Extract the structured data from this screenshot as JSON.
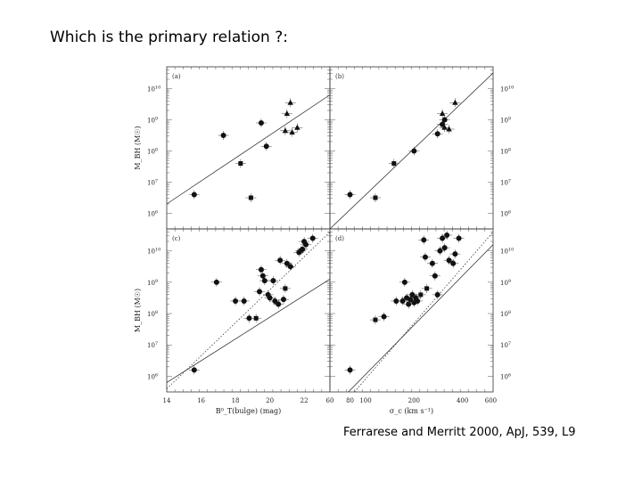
{
  "slide": {
    "title": "Which is the primary relation ?:",
    "citation": "Ferrarese and Merritt 2000, ApJ, 539, L9"
  },
  "chart_data": [
    {
      "panel": "(a)",
      "type": "scatter",
      "xlabel": "",
      "ylabel": "M_BH (M☉)",
      "xscale": "linear",
      "xlim": [
        14,
        23.5
      ],
      "yscale": "log",
      "ylim_exp": [
        5.5,
        10.7
      ],
      "yticks": [
        "10^6",
        "10^7",
        "10^8",
        "10^9",
        "10^10"
      ],
      "xticks": [],
      "right_yticks": [],
      "fit_lines": [
        {
          "x": [
            14,
            23.5
          ],
          "y_exp": [
            6.3,
            9.8
          ],
          "style": "solid"
        }
      ],
      "points": [
        {
          "x": 15.6,
          "y_exp": 6.6,
          "marker": "circle"
        },
        {
          "x": 17.3,
          "y_exp": 8.5,
          "marker": "circle"
        },
        {
          "x": 19.5,
          "y_exp": 8.9,
          "marker": "circle"
        },
        {
          "x": 19.8,
          "y_exp": 8.15,
          "marker": "circle"
        },
        {
          "x": 18.3,
          "y_exp": 7.6,
          "marker": "square"
        },
        {
          "x": 18.9,
          "y_exp": 6.5,
          "marker": "square"
        },
        {
          "x": 21.2,
          "y_exp": 9.55,
          "marker": "triangle"
        },
        {
          "x": 21.0,
          "y_exp": 9.2,
          "marker": "triangle"
        },
        {
          "x": 21.6,
          "y_exp": 8.75,
          "marker": "triangle"
        },
        {
          "x": 20.9,
          "y_exp": 8.65,
          "marker": "triangle"
        },
        {
          "x": 21.3,
          "y_exp": 8.6,
          "marker": "triangle"
        }
      ]
    },
    {
      "panel": "(b)",
      "type": "scatter",
      "xlabel": "",
      "ylabel": "",
      "xscale": "log",
      "xlim": [
        60,
        620
      ],
      "yscale": "log",
      "ylim_exp": [
        5.5,
        10.7
      ],
      "yticks": [],
      "xticks": [],
      "right_yticks": [
        "10^6",
        "10^7",
        "10^8",
        "10^9",
        "10^10"
      ],
      "fit_lines": [
        {
          "x": [
            60,
            620
          ],
          "y_exp": [
            5.5,
            10.5
          ],
          "style": "solid"
        }
      ],
      "points": [
        {
          "x": 80,
          "y_exp": 6.6,
          "marker": "circle"
        },
        {
          "x": 200,
          "y_exp": 8.0,
          "marker": "circle"
        },
        {
          "x": 280,
          "y_exp": 8.55,
          "marker": "circle"
        },
        {
          "x": 300,
          "y_exp": 8.85,
          "marker": "circle"
        },
        {
          "x": 310,
          "y_exp": 9.0,
          "marker": "circle"
        },
        {
          "x": 115,
          "y_exp": 6.5,
          "marker": "square"
        },
        {
          "x": 150,
          "y_exp": 7.6,
          "marker": "square"
        },
        {
          "x": 360,
          "y_exp": 9.55,
          "marker": "triangle"
        },
        {
          "x": 300,
          "y_exp": 9.2,
          "marker": "triangle"
        },
        {
          "x": 310,
          "y_exp": 8.75,
          "marker": "triangle"
        },
        {
          "x": 330,
          "y_exp": 8.7,
          "marker": "triangle"
        }
      ]
    },
    {
      "panel": "(c)",
      "type": "scatter",
      "xlabel": "B⁰_T(bulge) (mag)",
      "ylabel": "M_BH (M☉)",
      "xscale": "linear",
      "xlim": [
        14,
        23.5
      ],
      "yscale": "log",
      "ylim_exp": [
        5.5,
        10.7
      ],
      "yticks": [
        "10^6",
        "10^7",
        "10^8",
        "10^9",
        "10^10"
      ],
      "xticks": [
        "14",
        "16",
        "18",
        "20",
        "22"
      ],
      "right_yticks": [],
      "fit_lines": [
        {
          "x": [
            14,
            23.5
          ],
          "y_exp": [
            5.8,
            9.1
          ],
          "style": "solid"
        },
        {
          "x": [
            14,
            23.5
          ],
          "y_exp": [
            5.6,
            10.6
          ],
          "style": "dotted"
        }
      ],
      "points": [
        {
          "x": 15.6,
          "y_exp": 6.2,
          "marker": "circle"
        },
        {
          "x": 16.9,
          "y_exp": 9.0,
          "marker": "circle"
        },
        {
          "x": 18.0,
          "y_exp": 8.4,
          "marker": "circle"
        },
        {
          "x": 18.5,
          "y_exp": 8.4,
          "marker": "circle"
        },
        {
          "x": 18.8,
          "y_exp": 7.85,
          "marker": "circle"
        },
        {
          "x": 19.5,
          "y_exp": 9.4,
          "marker": "circle"
        },
        {
          "x": 19.6,
          "y_exp": 9.2,
          "marker": "circle"
        },
        {
          "x": 19.7,
          "y_exp": 9.05,
          "marker": "circle"
        },
        {
          "x": 19.4,
          "y_exp": 8.7,
          "marker": "circle"
        },
        {
          "x": 19.9,
          "y_exp": 8.6,
          "marker": "circle"
        },
        {
          "x": 20.0,
          "y_exp": 8.5,
          "marker": "circle"
        },
        {
          "x": 20.3,
          "y_exp": 8.4,
          "marker": "circle"
        },
        {
          "x": 20.5,
          "y_exp": 8.3,
          "marker": "circle"
        },
        {
          "x": 20.8,
          "y_exp": 8.45,
          "marker": "circle"
        },
        {
          "x": 20.2,
          "y_exp": 9.05,
          "marker": "circle"
        },
        {
          "x": 20.6,
          "y_exp": 9.7,
          "marker": "circle"
        },
        {
          "x": 21.0,
          "y_exp": 9.6,
          "marker": "circle"
        },
        {
          "x": 21.2,
          "y_exp": 9.5,
          "marker": "circle"
        },
        {
          "x": 21.8,
          "y_exp": 10.0,
          "marker": "circle"
        },
        {
          "x": 22.0,
          "y_exp": 10.3,
          "marker": "circle"
        },
        {
          "x": 22.1,
          "y_exp": 10.2,
          "marker": "circle"
        },
        {
          "x": 22.5,
          "y_exp": 10.4,
          "marker": "circle"
        },
        {
          "x": 21.9,
          "y_exp": 10.05,
          "marker": "circle"
        },
        {
          "x": 21.7,
          "y_exp": 9.95,
          "marker": "circle"
        },
        {
          "x": 19.2,
          "y_exp": 7.85,
          "marker": "square"
        },
        {
          "x": 20.9,
          "y_exp": 8.8,
          "marker": "square"
        }
      ]
    },
    {
      "panel": "(d)",
      "type": "scatter",
      "xlabel": "σ_c (km s⁻¹)",
      "ylabel": "",
      "xscale": "log",
      "xlim": [
        60,
        620
      ],
      "yscale": "log",
      "ylim_exp": [
        5.5,
        10.7
      ],
      "yticks": [],
      "xticks": [
        {
          "label": "60",
          "value": 60
        },
        {
          "label": "80",
          "value": 80
        },
        {
          "label": "100",
          "value": 100
        },
        {
          "label": "200",
          "value": 200
        },
        {
          "label": "400",
          "value": 400
        },
        {
          "label": "600",
          "value": 600
        }
      ],
      "right_yticks": [
        "10^6",
        "10^7",
        "10^8",
        "10^9",
        "10^10"
      ],
      "fit_lines": [
        {
          "x": [
            60,
            620
          ],
          "y_exp": [
            4.9,
            10.2
          ],
          "style": "solid"
        },
        {
          "x": [
            60,
            620
          ],
          "y_exp": [
            4.6,
            10.6
          ],
          "style": "dotted"
        }
      ],
      "points": [
        {
          "x": 80,
          "y_exp": 6.2,
          "marker": "circle"
        },
        {
          "x": 130,
          "y_exp": 7.9,
          "marker": "circle"
        },
        {
          "x": 155,
          "y_exp": 8.4,
          "marker": "circle"
        },
        {
          "x": 170,
          "y_exp": 8.4,
          "marker": "circle"
        },
        {
          "x": 175,
          "y_exp": 9.0,
          "marker": "circle"
        },
        {
          "x": 180,
          "y_exp": 8.5,
          "marker": "circle"
        },
        {
          "x": 185,
          "y_exp": 8.3,
          "marker": "circle"
        },
        {
          "x": 190,
          "y_exp": 8.45,
          "marker": "circle"
        },
        {
          "x": 195,
          "y_exp": 8.6,
          "marker": "circle"
        },
        {
          "x": 200,
          "y_exp": 8.35,
          "marker": "circle"
        },
        {
          "x": 205,
          "y_exp": 8.5,
          "marker": "circle"
        },
        {
          "x": 210,
          "y_exp": 8.4,
          "marker": "circle"
        },
        {
          "x": 230,
          "y_exp": 10.35,
          "marker": "circle"
        },
        {
          "x": 235,
          "y_exp": 9.8,
          "marker": "circle"
        },
        {
          "x": 260,
          "y_exp": 9.6,
          "marker": "circle"
        },
        {
          "x": 280,
          "y_exp": 8.6,
          "marker": "circle"
        },
        {
          "x": 290,
          "y_exp": 10.0,
          "marker": "circle"
        },
        {
          "x": 300,
          "y_exp": 10.4,
          "marker": "circle"
        },
        {
          "x": 310,
          "y_exp": 10.1,
          "marker": "circle"
        },
        {
          "x": 320,
          "y_exp": 10.5,
          "marker": "circle"
        },
        {
          "x": 330,
          "y_exp": 9.7,
          "marker": "circle"
        },
        {
          "x": 350,
          "y_exp": 9.6,
          "marker": "circle"
        },
        {
          "x": 360,
          "y_exp": 9.9,
          "marker": "circle"
        },
        {
          "x": 380,
          "y_exp": 10.4,
          "marker": "circle"
        },
        {
          "x": 270,
          "y_exp": 9.2,
          "marker": "circle"
        },
        {
          "x": 115,
          "y_exp": 7.8,
          "marker": "square"
        },
        {
          "x": 240,
          "y_exp": 8.8,
          "marker": "square"
        },
        {
          "x": 220,
          "y_exp": 8.6,
          "marker": "square"
        }
      ]
    }
  ]
}
